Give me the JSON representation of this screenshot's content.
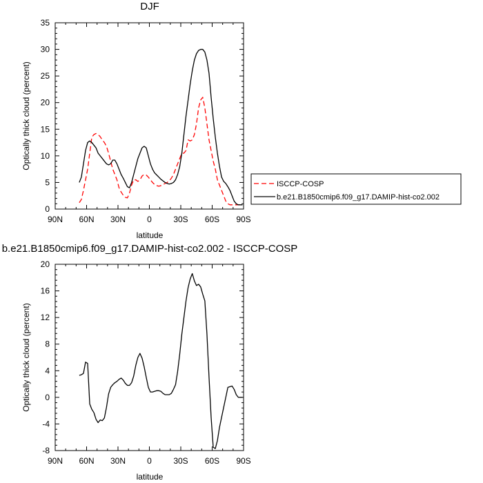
{
  "chart_data": [
    {
      "type": "line",
      "title": "DJF",
      "xlabel": "latitude",
      "ylabel": "Optically thick cloud (percent)",
      "xlim": [
        90,
        -90
      ],
      "ylim": [
        0,
        35
      ],
      "x_ticks": [
        90,
        60,
        30,
        0,
        -30,
        -60,
        -90
      ],
      "x_tick_labels": [
        "90N",
        "60N",
        "30N",
        "0",
        "30S",
        "60S",
        "90S"
      ],
      "y_ticks": [
        0,
        5,
        10,
        15,
        20,
        25,
        30,
        35
      ],
      "y_tick_labels": [
        "0",
        "5",
        "10",
        "15",
        "20",
        "25",
        "30",
        "35"
      ],
      "legend_position": "right",
      "series": [
        {
          "name": "ISCCP-COSP",
          "color": "#ff0000",
          "dash": "dashed",
          "x": [
            67,
            65,
            63,
            61,
            59,
            57,
            55,
            53,
            51,
            49,
            47,
            45,
            43,
            41,
            39,
            37,
            35,
            33,
            31,
            29,
            27,
            25,
            23,
            21,
            19,
            17,
            15,
            13,
            11,
            9,
            7,
            5,
            3,
            1,
            -1,
            -3,
            -5,
            -7,
            -9,
            -11,
            -13,
            -15,
            -17,
            -19,
            -21,
            -23,
            -25,
            -27,
            -29,
            -31,
            -33,
            -35,
            -37,
            -39,
            -41,
            -43,
            -45,
            -47,
            -49,
            -51,
            -53,
            -55,
            -57,
            -59,
            -61,
            -63,
            -65,
            -67,
            -69,
            -71,
            -73,
            -75,
            -77,
            -79,
            -81,
            -83,
            -85,
            -87,
            -89
          ],
          "y": [
            1.2,
            1.8,
            3.5,
            5.5,
            7.5,
            10.5,
            13.5,
            14,
            14.2,
            14,
            13.6,
            13,
            12.5,
            11.8,
            10.5,
            9,
            7.5,
            6.5,
            5.5,
            4,
            3.2,
            2.6,
            2.2,
            2.1,
            3,
            4.5,
            5.5,
            5.5,
            5.2,
            5.5,
            6.2,
            6.5,
            6.4,
            6,
            5.5,
            5,
            4.6,
            4.4,
            4.3,
            4.4,
            4.6,
            4.8,
            5,
            5.3,
            5.8,
            6.5,
            7.5,
            8.5,
            9.5,
            10.5,
            10.5,
            11,
            13,
            12.8,
            13,
            14,
            16,
            19,
            20.5,
            21,
            19,
            16,
            13,
            11,
            9,
            7.5,
            5.5,
            4.5,
            3.5,
            2.5,
            1.5,
            1,
            0.8,
            0.8,
            0.8,
            0.8,
            0.8,
            0.8,
            0.8
          ],
          "x_end": -89
        },
        {
          "name": "b.e21.B1850cmip6.f09_g17.DAMIP-hist-co2.002",
          "color": "#000000",
          "dash": "solid",
          "x": [
            67,
            65,
            63,
            61,
            59,
            57,
            55,
            53,
            51,
            49,
            47,
            45,
            43,
            41,
            39,
            37,
            35,
            33,
            31,
            29,
            27,
            25,
            23,
            21,
            19,
            17,
            15,
            13,
            11,
            9,
            7,
            5,
            3,
            1,
            -1,
            -3,
            -5,
            -7,
            -9,
            -11,
            -13,
            -15,
            -17,
            -19,
            -21,
            -23,
            -25,
            -27,
            -29,
            -31,
            -33,
            -35,
            -37,
            -39,
            -41,
            -43,
            -45,
            -47,
            -49,
            -51,
            -53,
            -55,
            -57,
            -59,
            -61,
            -63,
            -65,
            -67,
            -69,
            -71,
            -73,
            -75,
            -77,
            -79,
            -81,
            -83,
            -85,
            -87,
            -89
          ],
          "y": [
            5,
            6,
            8.5,
            11,
            12.5,
            12.8,
            12.5,
            12,
            11.5,
            10.5,
            10,
            9.5,
            9,
            8.5,
            8.3,
            8.5,
            9.2,
            9.2,
            8.5,
            7.5,
            6.5,
            5.8,
            5,
            4.2,
            4,
            5,
            6.5,
            8,
            9.5,
            10.5,
            11.5,
            11.8,
            11.5,
            10,
            8.5,
            7.5,
            6.8,
            6.4,
            6,
            5.6,
            5.3,
            5,
            4.8,
            4.7,
            4.8,
            5,
            5.5,
            6.5,
            8,
            10.5,
            14,
            17.5,
            20.5,
            23.5,
            26,
            28,
            29.2,
            29.8,
            30,
            30,
            29.5,
            28,
            25.5,
            21,
            17,
            13.5,
            10.5,
            8,
            6,
            5.2,
            4.8,
            4.2,
            3.5,
            2.5,
            1.5,
            1,
            0.8,
            0.8,
            0.8
          ]
        }
      ]
    },
    {
      "type": "line",
      "title": "b.e21.B1850cmip6.f09_g17.DAMIP-hist-co2.002 - ISCCP-COSP",
      "xlabel": "latitude",
      "ylabel": "Optically thick cloud (percent)",
      "xlim": [
        90,
        -90
      ],
      "ylim": [
        -8,
        20
      ],
      "x_ticks": [
        90,
        60,
        30,
        0,
        -30,
        -60,
        -90
      ],
      "x_tick_labels": [
        "90N",
        "60N",
        "30N",
        "0",
        "30S",
        "60S",
        "90S"
      ],
      "y_ticks": [
        -8,
        -4,
        0,
        4,
        8,
        12,
        16,
        20
      ],
      "y_tick_labels": [
        "-8",
        "-4",
        "0",
        "4",
        "8",
        "12",
        "16",
        "20"
      ],
      "series": [
        {
          "color": "#000000",
          "dash": "solid",
          "x": [
            67,
            65,
            63,
            61,
            59,
            57,
            55,
            53,
            51,
            49,
            47,
            45,
            43,
            41,
            39,
            37,
            35,
            33,
            31,
            29,
            27,
            25,
            23,
            21,
            19,
            17,
            15,
            13,
            11,
            9,
            7,
            5,
            3,
            1,
            -1,
            -3,
            -5,
            -7,
            -9,
            -11,
            -13,
            -15,
            -17,
            -19,
            -21,
            -23,
            -25,
            -27,
            -29,
            -31,
            -33,
            -35,
            -37,
            -39,
            -41,
            -43,
            -45,
            -47,
            -49,
            -51,
            -53,
            -55,
            -57,
            -59,
            -61,
            -63,
            -65,
            -67,
            -69,
            -71,
            -73,
            -75,
            -77,
            -79,
            -81,
            -83,
            -85,
            -87,
            -89
          ],
          "y": [
            3.3,
            3.4,
            3.6,
            5.3,
            5.1,
            -1,
            -1.8,
            -2.3,
            -3.3,
            -3.8,
            -3.4,
            -3.5,
            -3.1,
            -1.5,
            0.5,
            1.5,
            1.9,
            2.2,
            2.4,
            2.7,
            2.9,
            2.6,
            2.1,
            1.8,
            1.8,
            2.2,
            3.2,
            4.8,
            6,
            6.6,
            5.9,
            4.6,
            3,
            1.5,
            0.8,
            0.8,
            0.9,
            1,
            1,
            0.9,
            0.6,
            0.4,
            0.4,
            0.4,
            0.6,
            1.2,
            1.9,
            3.9,
            6.5,
            9.5,
            12,
            14.5,
            16.5,
            17.8,
            18.6,
            17.5,
            16.8,
            17,
            16.6,
            15.5,
            14.5,
            9.5,
            3,
            -3,
            -7.5,
            -7.7,
            -6.5,
            -4.5,
            -3,
            -1.5,
            0,
            1.5,
            1.6,
            1.7,
            1.2,
            0.4,
            0,
            0,
            0
          ]
        }
      ]
    }
  ]
}
